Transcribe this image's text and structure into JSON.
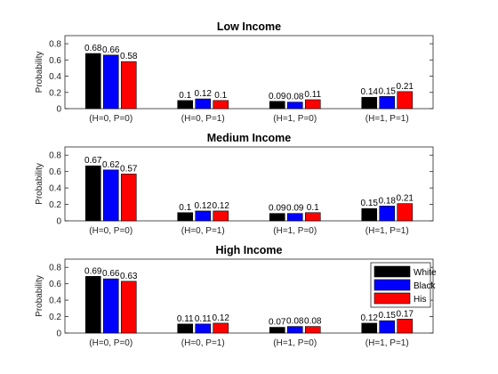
{
  "chart_data": [
    {
      "type": "bar",
      "title": "Low Income",
      "ylabel": "Probability",
      "ylim": [
        0,
        0.9
      ],
      "yticks": [
        0,
        0.2,
        0.4,
        0.6,
        0.8
      ],
      "categories": [
        "(H=0, P=0)",
        "(H=0, P=1)",
        "(H=1, P=0)",
        "(H=1, P=1)"
      ],
      "series": [
        {
          "values": [
            0.68,
            0.1,
            0.09,
            0.14
          ],
          "labels": [
            "0.68",
            "0.1",
            "0.09",
            "0.14"
          ],
          "color": "#000000"
        },
        {
          "values": [
            0.66,
            0.12,
            0.08,
            0.15
          ],
          "labels": [
            "0.66",
            "0.12",
            "0.08",
            "0.15"
          ],
          "color": "#0000ff"
        },
        {
          "values": [
            0.58,
            0.1,
            0.11,
            0.21
          ],
          "labels": [
            "0.58",
            "0.1",
            "0.11",
            "0.21"
          ],
          "color": "#ff0000"
        }
      ]
    },
    {
      "type": "bar",
      "title": "Medium Income",
      "ylabel": "Probability",
      "ylim": [
        0,
        0.9
      ],
      "yticks": [
        0,
        0.2,
        0.4,
        0.6,
        0.8
      ],
      "categories": [
        "(H=0, P=0)",
        "(H=0, P=1)",
        "(H=1, P=0)",
        "(H=1, P=1)"
      ],
      "series": [
        {
          "values": [
            0.67,
            0.1,
            0.09,
            0.15
          ],
          "labels": [
            "0.67",
            "0.1",
            "0.09",
            "0.15"
          ],
          "color": "#000000"
        },
        {
          "values": [
            0.62,
            0.12,
            0.09,
            0.18
          ],
          "labels": [
            "0.62",
            "0.12",
            "0.09",
            "0.18"
          ],
          "color": "#0000ff"
        },
        {
          "values": [
            0.57,
            0.12,
            0.1,
            0.21
          ],
          "labels": [
            "0.57",
            "0.12",
            "0.1",
            "0.21"
          ],
          "color": "#ff0000"
        }
      ]
    },
    {
      "type": "bar",
      "title": "High Income",
      "ylabel": "Probability",
      "ylim": [
        0,
        0.9
      ],
      "yticks": [
        0,
        0.2,
        0.4,
        0.6,
        0.8
      ],
      "categories": [
        "(H=0, P=0)",
        "(H=0, P=1)",
        "(H=1, P=0)",
        "(H=1, P=1)"
      ],
      "legend": {
        "position": "top-right"
      },
      "series": [
        {
          "name": "White",
          "values": [
            0.69,
            0.11,
            0.07,
            0.12
          ],
          "labels": [
            "0.69",
            "0.11",
            "0.07",
            "0.12"
          ],
          "color": "#000000"
        },
        {
          "name": "Black",
          "values": [
            0.66,
            0.11,
            0.08,
            0.15
          ],
          "labels": [
            "0.66",
            "0.11",
            "0.08",
            "0.15"
          ],
          "color": "#0000ff"
        },
        {
          "name": "His",
          "values": [
            0.63,
            0.12,
            0.08,
            0.17
          ],
          "labels": [
            "0.63",
            "0.12",
            "0.08",
            "0.17"
          ],
          "color": "#ff0000"
        }
      ]
    }
  ]
}
